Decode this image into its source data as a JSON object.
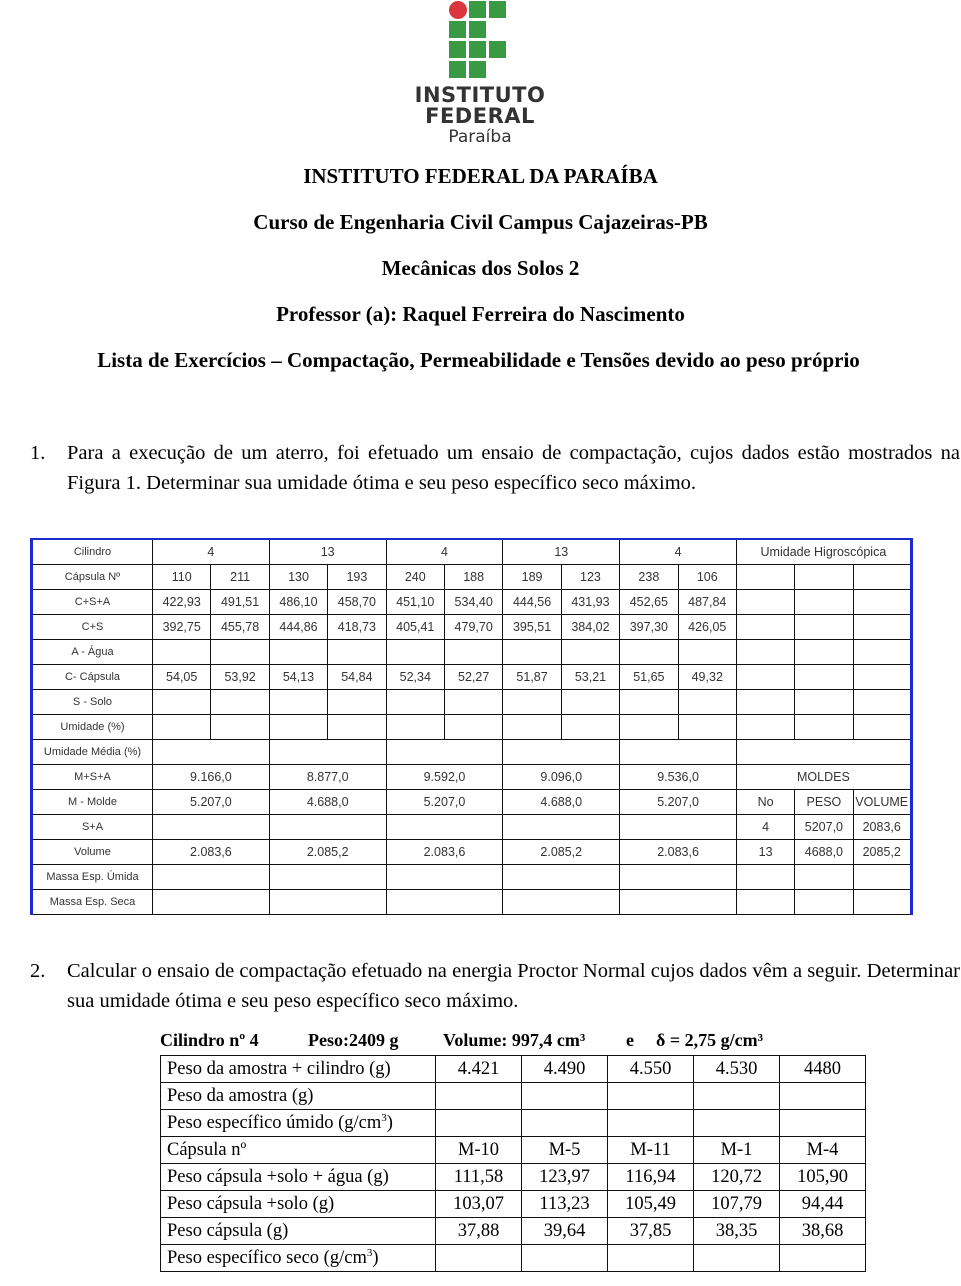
{
  "logo": {
    "line1": "INSTITUTO",
    "line2": "FEDERAL",
    "line3": "Paraíba",
    "colors": {
      "green": "#3a9a44",
      "red": "#d9373b"
    }
  },
  "header": {
    "institution": "INSTITUTO FEDERAL DA PARAÍBA",
    "course": "Curso de Engenharia Civil Campus Cajazeiras-PB",
    "subject": "Mecânicas dos Solos 2",
    "professor": "Professor (a): Raquel Ferreira do Nascimento",
    "list_title": "Lista de Exercícios – Compactação, Permeabilidade e Tensões devido ao peso próprio"
  },
  "q1": {
    "number": "1.",
    "text": "Para a execução de um aterro, foi efetuado um ensaio de compactação, cujos dados estão mostrados na Figura 1. Determinar sua umidade ótima e seu peso específico seco máximo."
  },
  "table1": {
    "rows": [
      {
        "label": "Cilindro",
        "values": [
          "4",
          "13",
          "4",
          "13",
          "4"
        ],
        "side": [
          "Umidade Higroscópica"
        ]
      },
      {
        "label": "Cápsula Nº",
        "values": [
          "110",
          "211",
          "130",
          "193",
          "240",
          "188",
          "189",
          "123",
          "238",
          "106"
        ],
        "side": [
          "",
          "",
          ""
        ]
      },
      {
        "label": "C+S+A",
        "values": [
          "422,93",
          "491,51",
          "486,10",
          "458,70",
          "451,10",
          "534,40",
          "444,56",
          "431,93",
          "452,65",
          "487,84"
        ],
        "side": [
          "",
          "",
          ""
        ]
      },
      {
        "label": "C+S",
        "values": [
          "392,75",
          "455,78",
          "444,86",
          "418,73",
          "405,41",
          "479,70",
          "395,51",
          "384,02",
          "397,30",
          "426,05"
        ],
        "side": [
          "",
          "",
          ""
        ]
      },
      {
        "label": "A - Água",
        "values": [
          "",
          "",
          "",
          "",
          "",
          "",
          "",
          "",
          "",
          ""
        ],
        "side": [
          "",
          "",
          ""
        ]
      },
      {
        "label": "C- Cápsula",
        "values": [
          "54,05",
          "53,92",
          "54,13",
          "54,84",
          "52,34",
          "52,27",
          "51,87",
          "53,21",
          "51,65",
          "49,32"
        ],
        "side": [
          "",
          "",
          ""
        ]
      },
      {
        "label": "S - Solo",
        "values": [
          "",
          "",
          "",
          "",
          "",
          "",
          "",
          "",
          "",
          ""
        ],
        "side": [
          "",
          "",
          ""
        ]
      },
      {
        "label": "Umidade (%)",
        "values": [
          "",
          "",
          "",
          "",
          "",
          "",
          "",
          "",
          "",
          ""
        ],
        "side": [
          "",
          "",
          ""
        ]
      },
      {
        "label": "Umidade Média (%)",
        "values": [
          "",
          "",
          "",
          "",
          ""
        ],
        "side": [
          ""
        ]
      },
      {
        "label": "M+S+A",
        "values": [
          "9.166,0",
          "8.877,0",
          "9.592,0",
          "9.096,0",
          "9.536,0"
        ],
        "side": [
          "MOLDES"
        ]
      },
      {
        "label": "M - Molde",
        "values": [
          "5.207,0",
          "4.688,0",
          "5.207,0",
          "4.688,0",
          "5.207,0"
        ],
        "side": [
          "No",
          "PESO",
          "VOLUME"
        ]
      },
      {
        "label": "S+A",
        "values": [
          "",
          "",
          "",
          "",
          ""
        ],
        "side": [
          "4",
          "5207,0",
          "2083,6"
        ]
      },
      {
        "label": "Volume",
        "values": [
          "2.083,6",
          "2.085,2",
          "2.083,6",
          "2.085,2",
          "2.083,6"
        ],
        "side": [
          "13",
          "4688,0",
          "2085,2"
        ]
      },
      {
        "label": "Massa Esp. Úmida",
        "values": [
          "",
          "",
          "",
          "",
          ""
        ],
        "side": [
          "",
          "",
          ""
        ]
      },
      {
        "label": "Massa Esp. Seca",
        "values": [
          "",
          "",
          "",
          "",
          ""
        ],
        "side": [
          "",
          "",
          ""
        ]
      }
    ]
  },
  "q2": {
    "number": "2.",
    "text": "Calcular o ensaio de compactação efetuado na energia Proctor Normal cujos dados vêm a seguir. Determinar sua umidade ótima e seu peso específico seco máximo."
  },
  "table2": {
    "header": {
      "cylinder": "Cilindro nº 4",
      "weight": "Peso:2409 g",
      "volume": "Volume: 997,4 cm³",
      "conj": "e",
      "delta": "δ = 2,75 g/cm³"
    },
    "rows": [
      {
        "label": "Peso da amostra + cilindro (g)",
        "values": [
          "4.421",
          "4.490",
          "4.550",
          "4.530",
          "4480"
        ]
      },
      {
        "label": "Peso da amostra (g)",
        "values": [
          "",
          "",
          "",
          "",
          ""
        ]
      },
      {
        "label": "Peso específico úmido (g/cm³)",
        "values": [
          "",
          "",
          "",
          "",
          ""
        ]
      },
      {
        "label": "Cápsula nº",
        "values": [
          "M-10",
          "M-5",
          "M-11",
          "M-1",
          "M-4"
        ]
      },
      {
        "label": "Peso cápsula +solo + água (g)",
        "values": [
          "111,58",
          "123,97",
          "116,94",
          "120,72",
          "105,90"
        ]
      },
      {
        "label": "Peso cápsula +solo (g)",
        "values": [
          "103,07",
          "113,23",
          "105,49",
          "107,79",
          "94,44"
        ]
      },
      {
        "label": "Peso cápsula (g)",
        "values": [
          "37,88",
          "39,64",
          "37,85",
          "38,35",
          "38,68"
        ]
      },
      {
        "label": "Peso específico seco (g/cm³)",
        "values": [
          "",
          "",
          "",
          "",
          ""
        ]
      }
    ]
  }
}
